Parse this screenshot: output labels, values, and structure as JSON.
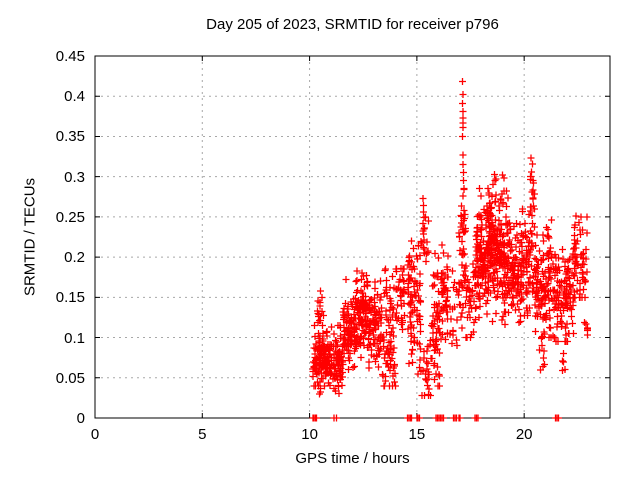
{
  "window": {
    "background": "#ffffff"
  },
  "chart_data": {
    "type": "scatter",
    "title": "Day 205 of 2023, SRMTID for receiver p796",
    "xlabel": "GPS time / hours",
    "ylabel": "SRMTID / TECUs",
    "xlim": [
      0,
      24
    ],
    "ylim": [
      0,
      0.45
    ],
    "xtick_labels": [
      "0",
      "5",
      "10",
      "15",
      "20"
    ],
    "xticks": [
      0,
      5,
      10,
      15,
      20
    ],
    "ytick_labels": [
      "0",
      "0.05",
      "0.1",
      "0.15",
      "0.2",
      "0.25",
      "0.3",
      "0.35",
      "0.4",
      "0.45"
    ],
    "yticks": [
      0,
      0.05,
      0.1,
      0.15,
      0.2,
      0.25,
      0.3,
      0.35,
      0.4,
      0.45
    ],
    "grid": true,
    "grid_color": "#a8a8a8",
    "border_color": "#000000",
    "legend": "none",
    "series": [
      {
        "name": "SRMTID",
        "marker": "plus",
        "color": "#ff0000",
        "marker_size": 7,
        "seed": 20230724,
        "outlier_points": [
          [
            17.12,
            0.418
          ],
          [
            17.14,
            0.402
          ],
          [
            17.13,
            0.391
          ],
          [
            17.15,
            0.381
          ],
          [
            17.14,
            0.373
          ],
          [
            17.16,
            0.367
          ],
          [
            17.15,
            0.361
          ],
          [
            17.13,
            0.35
          ],
          [
            17.16,
            0.327
          ],
          [
            17.15,
            0.315
          ],
          [
            17.17,
            0.305
          ],
          [
            17.18,
            0.295
          ],
          [
            17.2,
            0.285
          ],
          [
            17.16,
            0.276
          ],
          [
            17.19,
            0.258
          ],
          [
            17.21,
            0.248
          ],
          [
            17.14,
            0.24
          ],
          [
            17.18,
            0.231
          ],
          [
            15.28,
            0.273
          ],
          [
            15.32,
            0.264
          ],
          [
            15.3,
            0.256
          ],
          [
            15.34,
            0.249
          ],
          [
            15.29,
            0.242
          ],
          [
            15.35,
            0.236
          ],
          [
            15.31,
            0.229
          ],
          [
            15.33,
            0.221
          ],
          [
            15.3,
            0.212
          ],
          [
            15.36,
            0.205
          ],
          [
            20.33,
            0.323
          ],
          [
            20.38,
            0.316
          ],
          [
            20.35,
            0.306
          ],
          [
            20.3,
            0.3
          ],
          [
            20.4,
            0.295
          ],
          [
            20.36,
            0.281
          ],
          [
            20.42,
            0.272
          ],
          [
            20.31,
            0.262
          ],
          [
            20.37,
            0.252
          ],
          [
            18.62,
            0.303
          ],
          [
            18.68,
            0.297
          ],
          [
            18.55,
            0.29
          ],
          [
            19.0,
            0.302
          ],
          [
            22.42,
            0.251
          ],
          [
            22.55,
            0.243
          ],
          [
            22.38,
            0.24
          ],
          [
            22.6,
            0.234
          ],
          [
            22.35,
            0.227
          ],
          [
            22.48,
            0.22
          ],
          [
            10.52,
            0.158
          ],
          [
            10.58,
            0.15
          ],
          [
            12.2,
            0.183
          ],
          [
            12.45,
            0.18
          ],
          [
            11.7,
            0.172
          ],
          [
            16.18,
            0.215
          ],
          [
            16.25,
            0.205
          ],
          [
            22.82,
            0.119
          ],
          [
            22.95,
            0.112
          ],
          [
            14.25,
            0.186
          ],
          [
            14.32,
            0.178
          ]
        ],
        "zero_points": [
          10.16,
          10.21,
          10.27,
          10.32,
          11.13,
          11.26,
          14.57,
          14.63,
          14.7,
          14.76,
          15.0,
          15.06,
          15.13,
          15.9,
          15.97,
          16.03,
          16.1,
          16.17,
          16.23,
          16.7,
          16.77,
          16.84,
          16.97,
          17.02,
          17.7,
          17.77,
          17.84,
          21.46,
          21.53,
          21.6
        ],
        "cluster_fields": [
          "x_start",
          "x_end",
          "n_points",
          "y_mean",
          "y_sd",
          "y_min",
          "y_max"
        ],
        "clusters": [
          [
            10.15,
            10.5,
            45,
            0.075,
            0.02,
            0.04,
            0.12
          ],
          [
            10.3,
            10.7,
            14,
            0.13,
            0.015,
            0.105,
            0.16
          ],
          [
            10.45,
            11.05,
            90,
            0.072,
            0.018,
            0.03,
            0.115
          ],
          [
            11.05,
            11.55,
            70,
            0.065,
            0.02,
            0.025,
            0.115
          ],
          [
            11.55,
            12.1,
            80,
            0.105,
            0.02,
            0.06,
            0.15
          ],
          [
            12.1,
            12.7,
            110,
            0.13,
            0.022,
            0.075,
            0.18
          ],
          [
            12.7,
            13.35,
            90,
            0.115,
            0.025,
            0.045,
            0.17
          ],
          [
            13.35,
            14.0,
            50,
            0.08,
            0.025,
            0.04,
            0.125
          ],
          [
            13.5,
            14.45,
            60,
            0.15,
            0.02,
            0.11,
            0.185
          ],
          [
            14.55,
            15.18,
            85,
            0.14,
            0.04,
            0.055,
            0.23
          ],
          [
            15.2,
            15.55,
            12,
            0.22,
            0.02,
            0.19,
            0.25
          ],
          [
            15.15,
            15.7,
            28,
            0.065,
            0.025,
            0.028,
            0.115
          ],
          [
            15.7,
            16.1,
            55,
            0.12,
            0.045,
            0.04,
            0.22
          ],
          [
            16.1,
            16.48,
            45,
            0.15,
            0.035,
            0.075,
            0.215
          ],
          [
            16.5,
            16.95,
            18,
            0.14,
            0.03,
            0.09,
            0.185
          ],
          [
            16.95,
            17.3,
            45,
            0.19,
            0.05,
            0.1,
            0.3
          ],
          [
            17.3,
            17.75,
            35,
            0.15,
            0.03,
            0.1,
            0.21
          ],
          [
            17.75,
            18.35,
            130,
            0.2,
            0.035,
            0.115,
            0.285
          ],
          [
            18.35,
            18.9,
            130,
            0.21,
            0.035,
            0.12,
            0.295
          ],
          [
            18.9,
            19.35,
            90,
            0.2,
            0.04,
            0.115,
            0.3
          ],
          [
            19.35,
            19.8,
            70,
            0.175,
            0.03,
            0.115,
            0.25
          ],
          [
            19.8,
            20.25,
            70,
            0.185,
            0.035,
            0.12,
            0.26
          ],
          [
            20.25,
            20.5,
            30,
            0.22,
            0.045,
            0.15,
            0.3
          ],
          [
            20.5,
            21.05,
            75,
            0.165,
            0.03,
            0.1,
            0.24
          ],
          [
            20.7,
            20.95,
            10,
            0.082,
            0.015,
            0.055,
            0.108
          ],
          [
            21.05,
            21.45,
            50,
            0.165,
            0.035,
            0.1,
            0.25
          ],
          [
            21.45,
            22.05,
            75,
            0.15,
            0.03,
            0.095,
            0.225
          ],
          [
            21.75,
            21.95,
            5,
            0.067,
            0.008,
            0.055,
            0.08
          ],
          [
            22.05,
            22.3,
            30,
            0.16,
            0.03,
            0.105,
            0.22
          ],
          [
            22.3,
            22.95,
            55,
            0.19,
            0.03,
            0.15,
            0.25
          ],
          [
            22.75,
            23.0,
            4,
            0.113,
            0.006,
            0.103,
            0.122
          ]
        ]
      }
    ]
  }
}
